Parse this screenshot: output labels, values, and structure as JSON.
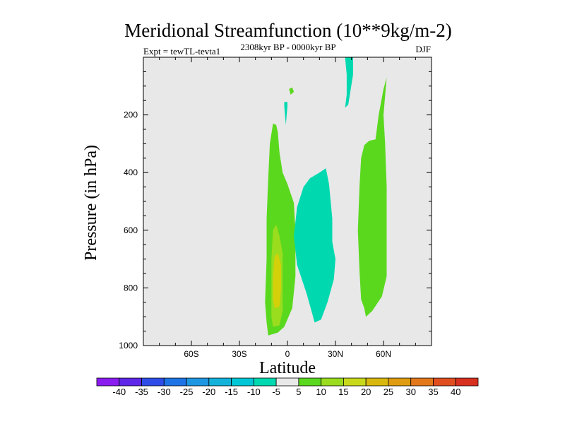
{
  "chart_data": {
    "type": "contour",
    "title": "Meridional Streamfunction (10**9kg/m-2)",
    "subtitle_left": "Expt = tewTL-tevta1",
    "subtitle_center": "2308kyr BP - 0000kyr BP",
    "subtitle_right": "DJF",
    "xlabel": "Latitude",
    "ylabel": "Pressure (in hPa)",
    "xlim": [
      -90,
      90
    ],
    "ylim": [
      1000,
      0
    ],
    "x_ticks": [
      {
        "value": -60,
        "label": "60S"
      },
      {
        "value": -30,
        "label": "30S"
      },
      {
        "value": 0,
        "label": "0"
      },
      {
        "value": 30,
        "label": "30N"
      },
      {
        "value": 60,
        "label": "60N"
      }
    ],
    "y_ticks": [
      {
        "value": 200,
        "label": "200"
      },
      {
        "value": 400,
        "label": "400"
      },
      {
        "value": 600,
        "label": "600"
      },
      {
        "value": 800,
        "label": "800"
      },
      {
        "value": 1000,
        "label": "1000"
      }
    ],
    "background_level_color": "#e8e8e8",
    "regions": [
      {
        "name": "green-band-equator",
        "level": "5 to 10",
        "color": "#5ad81e",
        "points": [
          [
            -12,
            965
          ],
          [
            -6,
            955
          ],
          [
            -2,
            935
          ],
          [
            3,
            870
          ],
          [
            5,
            760
          ],
          [
            5,
            600
          ],
          [
            4,
            505
          ],
          [
            0,
            440
          ],
          [
            -3,
            400
          ],
          [
            -5,
            330
          ],
          [
            -6,
            260
          ],
          [
            -7,
            235
          ],
          [
            -9,
            230
          ],
          [
            -11,
            300
          ],
          [
            -12,
            420
          ],
          [
            -13,
            560
          ],
          [
            -13,
            700
          ],
          [
            -14,
            850
          ],
          [
            -13,
            920
          ]
        ]
      },
      {
        "name": "green-lightest-equator",
        "level": "10 to 15",
        "color": "#9adc1e",
        "points": [
          [
            -9,
            935
          ],
          [
            -5,
            930
          ],
          [
            -3,
            880
          ],
          [
            -3,
            760
          ],
          [
            -3,
            680
          ],
          [
            -5,
            620
          ],
          [
            -7,
            580
          ],
          [
            -9,
            600
          ],
          [
            -10,
            700
          ],
          [
            -10,
            820
          ],
          [
            -10,
            900
          ]
        ]
      },
      {
        "name": "yellow-core-equator",
        "level": "15 to 20",
        "color": "#d4d00a",
        "points": [
          [
            -8,
            870
          ],
          [
            -5,
            865
          ],
          [
            -4,
            800
          ],
          [
            -4,
            720
          ],
          [
            -6,
            680
          ],
          [
            -8,
            690
          ],
          [
            -9,
            760
          ],
          [
            -9,
            840
          ]
        ]
      },
      {
        "name": "cyan-cell-north",
        "level": "-10 to -5",
        "color": "#00d9b0",
        "points": [
          [
            17,
            920
          ],
          [
            21,
            910
          ],
          [
            25,
            850
          ],
          [
            29,
            770
          ],
          [
            30,
            700
          ],
          [
            28,
            640
          ],
          [
            28,
            560
          ],
          [
            27,
            500
          ],
          [
            26,
            440
          ],
          [
            24,
            385
          ],
          [
            20,
            400
          ],
          [
            14,
            420
          ],
          [
            10,
            450
          ],
          [
            6,
            520
          ],
          [
            4,
            620
          ],
          [
            6,
            720
          ],
          [
            12,
            820
          ],
          [
            15,
            880
          ]
        ]
      },
      {
        "name": "green-cell-60n",
        "level": "5 to 10",
        "color": "#5ad81e",
        "points": [
          [
            49,
            900
          ],
          [
            53,
            880
          ],
          [
            59,
            830
          ],
          [
            62,
            760
          ],
          [
            62,
            600
          ],
          [
            62,
            450
          ],
          [
            61,
            300
          ],
          [
            60,
            200
          ],
          [
            62,
            70
          ],
          [
            60,
            110
          ],
          [
            57,
            200
          ],
          [
            55,
            285
          ],
          [
            51,
            290
          ],
          [
            48,
            305
          ],
          [
            46,
            350
          ],
          [
            45,
            450
          ],
          [
            44,
            600
          ],
          [
            45,
            740
          ],
          [
            46,
            840
          ],
          [
            48,
            870
          ]
        ]
      },
      {
        "name": "cyan-plume-tropopause",
        "level": "-10 to -5",
        "color": "#00d9b0",
        "points": [
          [
            36,
            175
          ],
          [
            38,
            165
          ],
          [
            39,
            130
          ],
          [
            41,
            60
          ],
          [
            41,
            0
          ],
          [
            36,
            0
          ],
          [
            37,
            60
          ],
          [
            37,
            130
          ]
        ]
      },
      {
        "name": "green-sliver-upper",
        "level": "5 to 10",
        "color": "#5ad81e",
        "points": [
          [
            2,
            130
          ],
          [
            4,
            120
          ],
          [
            3,
            105
          ],
          [
            1,
            110
          ]
        ]
      },
      {
        "name": "cyan-sliver-upper",
        "level": "-10 to -5",
        "color": "#00d9b0",
        "points": [
          [
            -2,
            170
          ],
          [
            -1,
            235
          ],
          [
            0,
            170
          ],
          [
            0,
            155
          ],
          [
            -2,
            155
          ]
        ]
      }
    ]
  },
  "colorbar": {
    "labels": [
      "-40",
      "-35",
      "-30",
      "-25",
      "-20",
      "-15",
      "-10",
      "-5",
      "5",
      "10",
      "15",
      "20",
      "25",
      "30",
      "35",
      "40"
    ],
    "colors": [
      "#8a1cf0",
      "#5e26e8",
      "#2f4ce8",
      "#1e73e6",
      "#1e96e2",
      "#13b2db",
      "#00c6d6",
      "#00d9b0",
      "#e8e8e8",
      "#5ad81e",
      "#9adc1e",
      "#c8d81a",
      "#d8b80e",
      "#e09c10",
      "#e2781a",
      "#e04e20",
      "#d8301e"
    ]
  }
}
